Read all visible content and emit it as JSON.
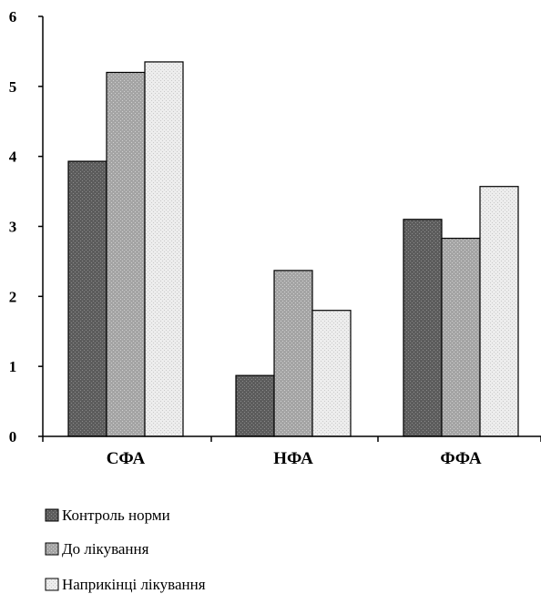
{
  "chart_data": {
    "type": "bar",
    "title": "",
    "xlabel": "",
    "ylabel": "",
    "categories": [
      "СФА",
      "НФА",
      "ФФА"
    ],
    "ylim": [
      0,
      6
    ],
    "yticks": [
      "0",
      "1",
      "2",
      "3",
      "4",
      "5",
      "6"
    ],
    "grid": false,
    "legend_position": "bottom-left",
    "series": [
      {
        "name": "Контроль норми",
        "values": [
          3.93,
          0.87,
          3.1
        ],
        "color": "#6a6a6a"
      },
      {
        "name": "До лікування",
        "values": [
          5.2,
          2.37,
          2.83
        ],
        "color": "#a9a9a9"
      },
      {
        "name": "Наприкінці лікування",
        "values": [
          5.35,
          1.8,
          3.57
        ],
        "color": "#e8e8e8"
      }
    ]
  }
}
